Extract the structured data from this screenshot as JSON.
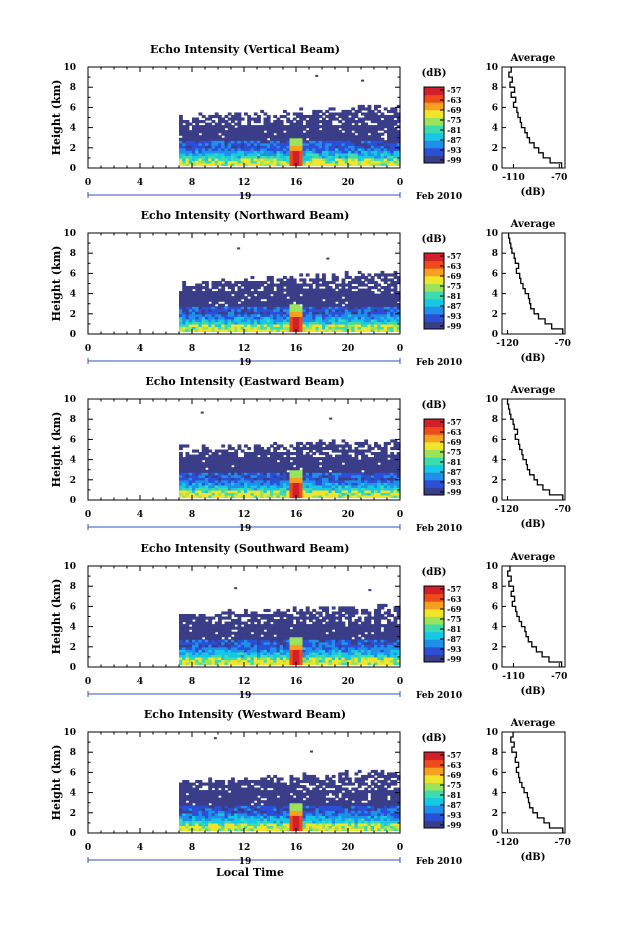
{
  "figure": {
    "xlabel": "Local Time",
    "date_label": "Feb 2010",
    "day_label": "19",
    "unit_label": "(dB)",
    "ylabel": "Height (km)",
    "avg_title": "Average",
    "avg_xlabel": "(dB)"
  },
  "colors": {
    "scale": [
      "#3a3d87",
      "#2b4fd6",
      "#1f8fea",
      "#17c8e6",
      "#3cdcb0",
      "#9be35a",
      "#f0e52a",
      "#f7a020",
      "#ee4a1a",
      "#d2202a"
    ],
    "background": "#ffffff"
  },
  "colorbar_ticks": [
    "-57",
    "-63",
    "-69",
    "-75",
    "-81",
    "-87",
    "-93",
    "-99"
  ],
  "chart_data": [
    {
      "type": "heatmap",
      "title": "Echo Intensity (Vertical Beam)",
      "xlabel": "Local Time",
      "ylabel": "Height (km)",
      "xlim": [
        0,
        24
      ],
      "ylim": [
        0,
        10
      ],
      "x_ticks": [
        "0",
        "4",
        "8",
        "12",
        "16",
        "20",
        "0"
      ],
      "y_ticks": [
        "0",
        "2",
        "4",
        "6",
        "8",
        "10"
      ],
      "colorbar": {
        "label": "(dB)",
        "ticks": [
          -57,
          -63,
          -69,
          -75,
          -81,
          -87,
          -93,
          -99
        ]
      },
      "data_start_hour": 7.0,
      "echo_top_km": [
        5.0,
        6.0
      ],
      "bright_band_km": [
        0.8,
        2.0
      ],
      "convective_hour": 16,
      "average": {
        "title": "Average",
        "xlabel": "(dB)",
        "x_ticks": [
          "-110",
          "-70"
        ],
        "xlim": [
          -120,
          -65
        ],
        "height_km": [
          0,
          0.5,
          1,
          1.5,
          2,
          2.5,
          3,
          3.5,
          4,
          4.5,
          5,
          5.5,
          6,
          6.5,
          7,
          7.5,
          8,
          8.5,
          9,
          9.5
        ],
        "value_db": [
          -68,
          -78,
          -84,
          -88,
          -92,
          -96,
          -98,
          -100,
          -103,
          -104,
          -106,
          -107,
          -110,
          -108,
          -112,
          -109,
          -113,
          -111,
          -114,
          -112
        ]
      }
    },
    {
      "type": "heatmap",
      "title": "Echo Intensity (Northward Beam)",
      "xlabel": "Local Time",
      "ylabel": "Height (km)",
      "xlim": [
        0,
        24
      ],
      "ylim": [
        0,
        10
      ],
      "x_ticks": [
        "0",
        "4",
        "8",
        "12",
        "16",
        "20",
        "0"
      ],
      "y_ticks": [
        "0",
        "2",
        "4",
        "6",
        "8",
        "10"
      ],
      "colorbar": {
        "label": "(dB)",
        "ticks": [
          -57,
          -63,
          -69,
          -75,
          -81,
          -87,
          -93,
          -99
        ]
      },
      "data_start_hour": 7.0,
      "echo_top_km": [
        5.0,
        6.0
      ],
      "bright_band_km": [
        0.8,
        2.0
      ],
      "convective_hour": 16,
      "average": {
        "title": "Average",
        "xlabel": "(dB)",
        "x_ticks": [
          "-120",
          "-70"
        ],
        "xlim": [
          -125,
          -68
        ],
        "height_km": [
          0,
          0.5,
          1,
          1.5,
          2,
          2.5,
          3,
          3.5,
          4,
          4.5,
          5,
          5.5,
          6,
          6.5,
          7,
          7.5,
          8,
          8.5,
          9,
          9.5
        ],
        "value_db": [
          -70,
          -80,
          -86,
          -92,
          -96,
          -99,
          -100,
          -101,
          -104,
          -106,
          -108,
          -109,
          -112,
          -110,
          -113,
          -114,
          -116,
          -117,
          -118,
          -119
        ]
      }
    },
    {
      "type": "heatmap",
      "title": "Echo Intensity (Eastward Beam)",
      "xlabel": "Local Time",
      "ylabel": "Height (km)",
      "xlim": [
        0,
        24
      ],
      "ylim": [
        0,
        10
      ],
      "x_ticks": [
        "0",
        "4",
        "8",
        "12",
        "16",
        "20",
        "0"
      ],
      "y_ticks": [
        "0",
        "2",
        "4",
        "6",
        "8",
        "10"
      ],
      "colorbar": {
        "label": "(dB)",
        "ticks": [
          -57,
          -63,
          -69,
          -75,
          -81,
          -87,
          -93,
          -99
        ]
      },
      "data_start_hour": 7.0,
      "echo_top_km": [
        5.0,
        5.8
      ],
      "bright_band_km": [
        0.8,
        2.0
      ],
      "convective_hour": 16,
      "average": {
        "title": "Average",
        "xlabel": "(dB)",
        "x_ticks": [
          "-120",
          "-70"
        ],
        "xlim": [
          -125,
          -68
        ],
        "height_km": [
          0,
          0.5,
          1,
          1.5,
          2,
          2.5,
          3,
          3.5,
          4,
          4.5,
          5,
          5.5,
          6,
          6.5,
          7,
          7.5,
          8,
          8.5,
          9,
          9.5
        ],
        "value_db": [
          -70,
          -82,
          -88,
          -93,
          -96,
          -100,
          -102,
          -103,
          -106,
          -107,
          -109,
          -110,
          -113,
          -111,
          -114,
          -115,
          -117,
          -118,
          -119,
          -120
        ]
      }
    },
    {
      "type": "heatmap",
      "title": "Echo Intensity (Southward Beam)",
      "xlabel": "Local Time",
      "ylabel": "Height (km)",
      "xlim": [
        0,
        24
      ],
      "ylim": [
        0,
        10
      ],
      "x_ticks": [
        "0",
        "4",
        "8",
        "12",
        "16",
        "20",
        "0"
      ],
      "y_ticks": [
        "0",
        "2",
        "4",
        "6",
        "8",
        "10"
      ],
      "colorbar": {
        "label": "(dB)",
        "ticks": [
          -57,
          -63,
          -69,
          -75,
          -81,
          -87,
          -93,
          -99
        ]
      },
      "data_start_hour": 7.0,
      "echo_top_km": [
        5.0,
        6.0
      ],
      "bright_band_km": [
        0.8,
        2.0
      ],
      "convective_hour": 16,
      "average": {
        "title": "Average",
        "xlabel": "(dB)",
        "x_ticks": [
          "-110",
          "-70"
        ],
        "xlim": [
          -120,
          -65
        ],
        "height_km": [
          0,
          0.5,
          1,
          1.5,
          2,
          2.5,
          3,
          3.5,
          4,
          4.5,
          5,
          5.5,
          6,
          6.5,
          7,
          7.5,
          8,
          8.5,
          9,
          9.5
        ],
        "value_db": [
          -68,
          -79,
          -85,
          -90,
          -94,
          -97,
          -99,
          -100,
          -103,
          -105,
          -107,
          -108,
          -111,
          -109,
          -112,
          -110,
          -114,
          -112,
          -115,
          -113
        ]
      }
    },
    {
      "type": "heatmap",
      "title": "Echo Intensity (Westward Beam)",
      "xlabel": "Local Time",
      "ylabel": "Height (km)",
      "xlim": [
        0,
        24
      ],
      "ylim": [
        0,
        10
      ],
      "x_ticks": [
        "0",
        "4",
        "8",
        "12",
        "16",
        "20",
        "0"
      ],
      "y_ticks": [
        "0",
        "2",
        "4",
        "6",
        "8",
        "10"
      ],
      "colorbar": {
        "label": "(dB)",
        "ticks": [
          -57,
          -63,
          -69,
          -75,
          -81,
          -87,
          -93,
          -99
        ]
      },
      "data_start_hour": 7.0,
      "echo_top_km": [
        5.0,
        6.0
      ],
      "bright_band_km": [
        0.8,
        2.0
      ],
      "convective_hour": 16,
      "average": {
        "title": "Average",
        "xlabel": "(dB)",
        "x_ticks": [
          "-120",
          "-70"
        ],
        "xlim": [
          -125,
          -68
        ],
        "height_km": [
          0,
          0.5,
          1,
          1.5,
          2,
          2.5,
          3,
          3.5,
          4,
          4.5,
          5,
          5.5,
          6,
          6.5,
          7,
          7.5,
          8,
          8.5,
          9,
          9.5
        ],
        "value_db": [
          -70,
          -82,
          -87,
          -93,
          -97,
          -100,
          -101,
          -102,
          -105,
          -107,
          -109,
          -110,
          -112,
          -110,
          -113,
          -112,
          -116,
          -114,
          -117,
          -115
        ]
      }
    }
  ]
}
